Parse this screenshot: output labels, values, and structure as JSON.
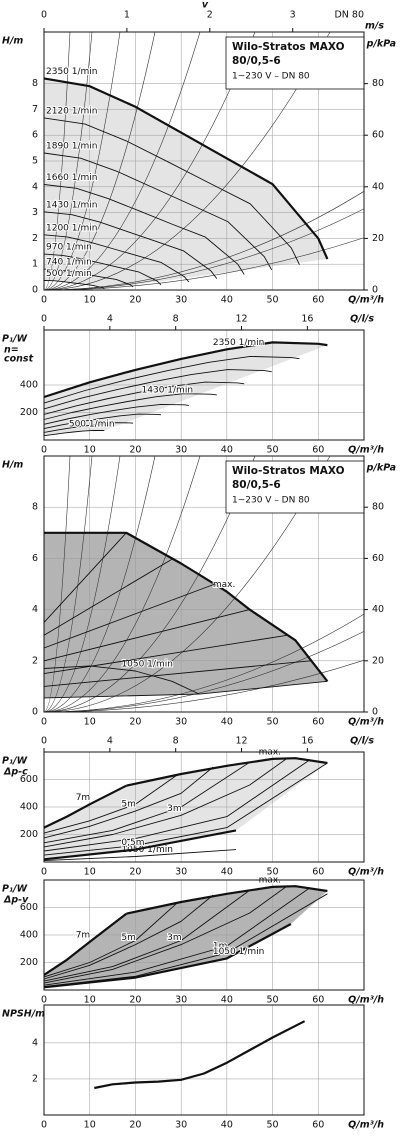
{
  "chart_data": [
    {
      "type": "line",
      "ylabel": "H/m",
      "xlabel": "Q/m³/h",
      "y2label": "p/kPa",
      "x2label": "v",
      "x2unit": "m/s",
      "x2note": "DN 80",
      "x2lim": [
        0,
        3.86
      ],
      "x2ticks": [
        0,
        1,
        2,
        3
      ],
      "xlim": [
        0,
        70
      ],
      "xticks": [
        0,
        10,
        20,
        30,
        40,
        50,
        60
      ],
      "ylim": [
        0,
        10
      ],
      "yticks": [
        0,
        1,
        2,
        3,
        4,
        5,
        6,
        7,
        8
      ],
      "y2lim": [
        0,
        100
      ],
      "y2ticks": [
        0,
        20,
        40,
        60,
        80
      ],
      "grid": true,
      "fill": "#e4e4e4",
      "box": {
        "title": "Wilo-Stratos MAXO",
        "model": "80/0,5-6",
        "spec": "1~230 V – DN 80"
      },
      "series": [
        {
          "name": "2350 1/min",
          "bold": true,
          "x": [
            0,
            10,
            20,
            30,
            40,
            50,
            60,
            62
          ],
          "values": [
            8.2,
            7.9,
            7.1,
            6.1,
            5.1,
            4.1,
            2.0,
            1.2
          ]
        },
        {
          "name": "2120 1/min",
          "x": [
            0,
            9.0,
            18.0,
            27.1,
            36.1,
            45.1,
            54.1,
            55.9
          ],
          "values": [
            6.67,
            6.43,
            5.78,
            4.97,
            4.15,
            3.34,
            1.63,
            0.98
          ]
        },
        {
          "name": "1890 1/min",
          "x": [
            0,
            8.0,
            16.1,
            24.1,
            32.2,
            40.2,
            48.2,
            49.8
          ],
          "values": [
            5.31,
            5.11,
            4.59,
            3.95,
            3.3,
            2.65,
            1.29,
            0.78
          ]
        },
        {
          "name": "1660 1/min",
          "x": [
            0,
            7.1,
            14.1,
            21.2,
            28.2,
            35.3,
            42.4,
            43.8
          ],
          "values": [
            4.09,
            3.94,
            3.54,
            3.04,
            2.54,
            2.05,
            1.0,
            0.6
          ]
        },
        {
          "name": "1430 1/min",
          "x": [
            0,
            6.1,
            12.2,
            18.3,
            24.4,
            30.5,
            36.5,
            37.8
          ],
          "values": [
            3.03,
            2.92,
            2.63,
            2.26,
            1.89,
            1.52,
            0.74,
            0.44
          ]
        },
        {
          "name": "1200 1/min",
          "x": [
            0,
            5.1,
            10.2,
            15.3,
            20.4,
            25.6,
            30.7,
            31.7
          ],
          "values": [
            2.14,
            2.06,
            1.85,
            1.59,
            1.33,
            1.07,
            0.52,
            0.31
          ]
        },
        {
          "name": "970 1/min",
          "x": [
            0,
            4.1,
            8.3,
            12.4,
            16.5,
            20.7,
            24.8,
            25.6
          ],
          "values": [
            1.39,
            1.34,
            1.21,
            1.04,
            0.87,
            0.7,
            0.34,
            0.2
          ]
        },
        {
          "name": "740 1/min",
          "x": [
            0,
            3.2,
            6.3,
            9.5,
            12.6,
            15.8,
            18.9,
            19.5
          ],
          "values": [
            0.81,
            0.78,
            0.7,
            0.6,
            0.5,
            0.41,
            0.2,
            0.12
          ]
        },
        {
          "name": "500 1/min",
          "x": [
            0,
            2.1,
            4.3,
            6.4,
            8.5,
            10.7,
            12.8,
            13.2
          ],
          "values": [
            0.37,
            0.36,
            0.32,
            0.27,
            0.23,
            0.18,
            0.09,
            0.05
          ]
        }
      ]
    },
    {
      "type": "line",
      "ylabel": "P₁/W",
      "ylabel_note": [
        "n=",
        "const"
      ],
      "xlabel": "Q/m³/h",
      "x2label": "Q/l/s",
      "x2lim": [
        0,
        19.44
      ],
      "x2ticks": [
        0,
        4,
        8,
        12,
        16
      ],
      "xlim": [
        0,
        70
      ],
      "xticks": [
        0,
        10,
        20,
        30,
        40,
        50,
        60
      ],
      "ylim": [
        0,
        800
      ],
      "yticks": [
        200,
        400
      ],
      "grid": true,
      "fill": "#e4e4e4",
      "series": [
        {
          "name": "2350 1/min",
          "bold": true,
          "x": [
            0,
            10,
            20,
            30,
            40,
            50,
            60,
            62
          ],
          "values": [
            313,
            420,
            510,
            590,
            660,
            710,
            700,
            690
          ]
        },
        {
          "name": null,
          "x": [
            0,
            9.0,
            18.0,
            27.1,
            36.1,
            45.1,
            54.1,
            55.9
          ],
          "values": [
            268,
            360,
            437,
            505,
            565,
            608,
            599,
            591
          ]
        },
        {
          "name": null,
          "x": [
            0,
            8.0,
            16.1,
            24.1,
            32.2,
            40.2,
            48.2,
            49.8
          ],
          "values": [
            226,
            303,
            368,
            425,
            476,
            512,
            505,
            497
          ]
        },
        {
          "name": null,
          "x": [
            0,
            7.1,
            14.1,
            21.2,
            28.2,
            35.3,
            42.4,
            43.8
          ],
          "values": [
            186,
            249,
            302,
            350,
            391,
            421,
            415,
            409
          ]
        },
        {
          "name": "1430 1/min",
          "x": [
            0,
            6.1,
            12.2,
            18.3,
            24.4,
            30.5,
            36.5,
            37.8
          ],
          "values": [
            149,
            200,
            242,
            280,
            314,
            337,
            333,
            328
          ]
        },
        {
          "name": null,
          "x": [
            0,
            5.1,
            10.2,
            15.3,
            20.4,
            25.6,
            30.7,
            31.7
          ],
          "values": [
            114,
            153,
            186,
            215,
            241,
            259,
            256,
            252
          ]
        },
        {
          "name": null,
          "x": [
            0,
            4.1,
            8.3,
            12.4,
            16.5,
            20.7,
            24.8,
            25.6
          ],
          "values": [
            83,
            111,
            135,
            156,
            175,
            188,
            186,
            183
          ]
        },
        {
          "name": null,
          "x": [
            0,
            3.2,
            6.3,
            9.5,
            12.6,
            15.8,
            18.9,
            19.5
          ],
          "values": [
            55,
            74,
            90,
            104,
            117,
            126,
            124,
            122
          ]
        },
        {
          "name": "500 1/min",
          "x": [
            0,
            2.1,
            4.3,
            6.4,
            8.5,
            10.7,
            12.8,
            13.2
          ],
          "values": [
            31,
            41,
            50,
            58,
            65,
            70,
            69,
            68
          ]
        }
      ]
    },
    {
      "type": "line",
      "ylabel": "H/m",
      "xlabel": "Q/m³/h",
      "y2label": "p/kPa",
      "xlim": [
        0,
        70
      ],
      "xticks": [
        0,
        10,
        20,
        30,
        40,
        50,
        60
      ],
      "ylim": [
        0,
        10
      ],
      "yticks": [
        0,
        2,
        4,
        6,
        8
      ],
      "y2lim": [
        0,
        100
      ],
      "y2ticks": [
        0,
        20,
        40,
        60,
        80
      ],
      "grid": true,
      "fill": "#b4b4b4",
      "box": {
        "title": "Wilo-Stratos MAXO",
        "model": "80/0,5-6",
        "spec": "1~230 V – DN 80"
      },
      "series": [
        {
          "name": "max.",
          "bold": true,
          "x": [
            0,
            18,
            30,
            40,
            45,
            55,
            62
          ],
          "values": [
            7,
            7,
            5.8,
            4.7,
            4.0,
            2.8,
            1.2
          ]
        },
        {
          "name": "1050 1/min",
          "x": [
            0,
            10,
            20,
            28,
            34
          ],
          "values": [
            1.7,
            1.8,
            1.6,
            1.2,
            0.7
          ]
        },
        {
          "name": null,
          "x": [
            0,
            18
          ],
          "values": [
            3.5,
            7
          ]
        },
        {
          "name": null,
          "x": [
            0,
            28.3
          ],
          "values": [
            3,
            6
          ]
        },
        {
          "name": null,
          "x": [
            0,
            37.4
          ],
          "values": [
            2.5,
            5
          ]
        },
        {
          "name": null,
          "x": [
            0,
            45
          ],
          "values": [
            2,
            4
          ]
        },
        {
          "name": null,
          "x": [
            0,
            53.3
          ],
          "values": [
            1.5,
            3
          ]
        },
        {
          "name": null,
          "x": [
            0,
            58.3
          ],
          "values": [
            1,
            2
          ]
        },
        {
          "name": null,
          "x": [
            0,
            34,
            62
          ],
          "values": [
            0.55,
            0.7,
            1.2
          ]
        }
      ]
    },
    {
      "type": "line",
      "ylabel": "P₁/W",
      "ylabel_note": [
        "Δp-c"
      ],
      "xlabel": "Q/m³/h",
      "x2label": "Q/l/s",
      "x2lim": [
        0,
        19.44
      ],
      "x2ticks": [
        0,
        4,
        8,
        12,
        16
      ],
      "xlim": [
        0,
        70
      ],
      "xticks": [
        0,
        10,
        20,
        30,
        40,
        50,
        60
      ],
      "ylim": [
        0,
        800
      ],
      "yticks": [
        200,
        400,
        600
      ],
      "grid": true,
      "fill": "#e4e4e4",
      "series": [
        {
          "name": "7m",
          "bold": true,
          "x": [
            0,
            5,
            10,
            18
          ],
          "values": [
            250,
            330,
            420,
            555
          ]
        },
        {
          "name": "max.",
          "bold": true,
          "x": [
            18,
            30,
            40,
            50,
            55,
            62
          ],
          "values": [
            555,
            640,
            700,
            750,
            755,
            720
          ]
        },
        {
          "name": null,
          "x": [
            0,
            10,
            20,
            29
          ],
          "values": [
            210,
            300,
            420,
            630
          ]
        },
        {
          "name": "5m",
          "x": [
            0,
            10,
            20,
            30,
            37
          ],
          "values": [
            175,
            260,
            370,
            500,
            690
          ]
        },
        {
          "name": null,
          "x": [
            0,
            15,
            30,
            45
          ],
          "values": [
            140,
            230,
            400,
            725
          ]
        },
        {
          "name": "3m",
          "x": [
            0,
            15,
            30,
            45,
            53
          ],
          "values": [
            110,
            200,
            340,
            560,
            750
          ]
        },
        {
          "name": null,
          "x": [
            0,
            20,
            40,
            58
          ],
          "values": [
            80,
            170,
            330,
            740
          ]
        },
        {
          "name": null,
          "x": [
            0,
            20,
            40,
            62
          ],
          "values": [
            50,
            120,
            250,
            720
          ]
        },
        {
          "name": "1050 1/min",
          "x": [
            0,
            20,
            42
          ],
          "values": [
            10,
            40,
            90
          ]
        },
        {
          "name": "0,5m",
          "bold": true,
          "x": [
            0,
            20,
            42
          ],
          "values": [
            20,
            90,
            230
          ]
        }
      ]
    },
    {
      "type": "line",
      "ylabel": "P₁/W",
      "ylabel_note": [
        "Δp-v"
      ],
      "xlabel": "Q/m³/h",
      "xlim": [
        0,
        70
      ],
      "xticks": [
        0,
        10,
        20,
        30,
        40,
        50,
        60
      ],
      "ylim": [
        0,
        800
      ],
      "yticks": [
        200,
        400,
        600
      ],
      "grid": true,
      "fill": "#b4b4b4",
      "series": [
        {
          "name": "7m",
          "bold": true,
          "x": [
            0,
            5,
            10,
            18
          ],
          "values": [
            110,
            220,
            350,
            555
          ]
        },
        {
          "name": "max.",
          "bold": true,
          "x": [
            18,
            30,
            40,
            50,
            55,
            62
          ],
          "values": [
            555,
            640,
            700,
            750,
            755,
            720
          ]
        },
        {
          "name": null,
          "x": [
            0,
            10,
            20,
            29
          ],
          "values": [
            95,
            200,
            360,
            630
          ]
        },
        {
          "name": "5m",
          "x": [
            0,
            10,
            20,
            30,
            37
          ],
          "values": [
            80,
            180,
            330,
            500,
            690
          ]
        },
        {
          "name": null,
          "x": [
            0,
            15,
            30,
            45
          ],
          "values": [
            65,
            170,
            360,
            725
          ]
        },
        {
          "name": "3m",
          "x": [
            0,
            15,
            30,
            45,
            53
          ],
          "values": [
            50,
            150,
            330,
            560,
            752
          ]
        },
        {
          "name": null,
          "x": [
            0,
            20,
            40,
            58
          ],
          "values": [
            35,
            130,
            320,
            740
          ]
        },
        {
          "name": "1m",
          "x": [
            0,
            20,
            40,
            62
          ],
          "values": [
            25,
            100,
            270,
            700
          ]
        },
        {
          "name": "1050 1/min",
          "bold": true,
          "x": [
            0,
            20,
            40,
            54
          ],
          "values": [
            20,
            90,
            230,
            480
          ]
        }
      ]
    },
    {
      "type": "line",
      "ylabel": "NPSH/m",
      "xlabel": "Q/m³/h",
      "xlim": [
        0,
        70
      ],
      "xticks": [
        0,
        10,
        20,
        30,
        40,
        50,
        60
      ],
      "ylim": [
        0,
        6.1
      ],
      "yticks": [
        2,
        4
      ],
      "grid": true,
      "series": [
        {
          "name": null,
          "bold": true,
          "x": [
            11,
            15,
            20,
            25,
            30,
            35,
            40,
            45,
            50,
            57
          ],
          "values": [
            1.5,
            1.7,
            1.8,
            1.85,
            1.95,
            2.3,
            2.9,
            3.6,
            4.3,
            5.2
          ]
        }
      ]
    }
  ]
}
